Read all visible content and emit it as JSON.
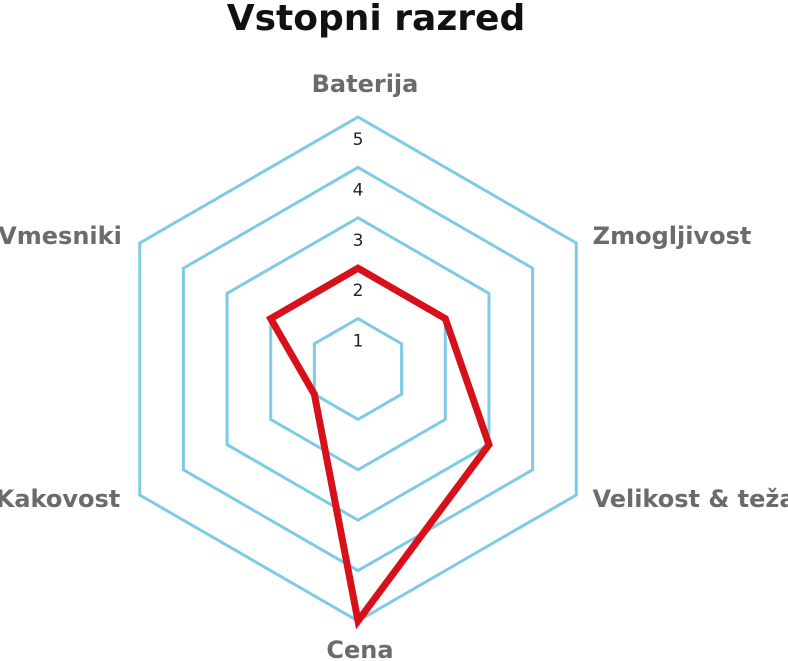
{
  "chart_data": {
    "type": "radar",
    "title": "Vstopni razred",
    "categories": [
      "Baterija",
      "Zmogljivost",
      "Velikost & teža",
      "Cena",
      "Kakovost",
      "Vmesniki"
    ],
    "series": [
      {
        "color": "#d7101a",
        "values": [
          2,
          2,
          3,
          5,
          1,
          2
        ]
      }
    ],
    "rlim": [
      0,
      5
    ],
    "rticks": [
      1,
      2,
      3,
      4,
      5
    ],
    "grid_color": "#7ecbe8"
  }
}
